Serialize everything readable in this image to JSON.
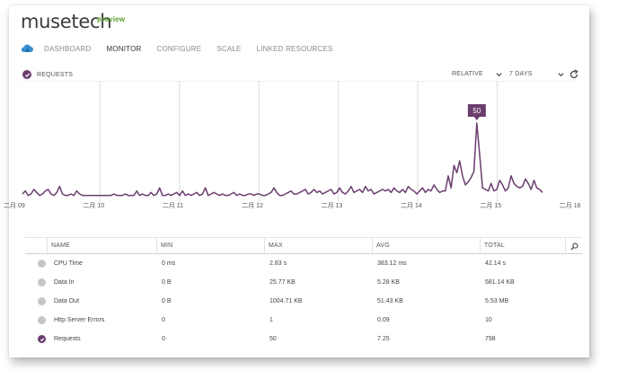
{
  "app": {
    "title": "musetech",
    "preview_tag": "preview"
  },
  "nav": {
    "icon": "cloud-icon",
    "tabs": [
      {
        "label": "DASHBOARD",
        "active": false
      },
      {
        "label": "MONITOR",
        "active": true
      },
      {
        "label": "CONFIGURE",
        "active": false
      },
      {
        "label": "SCALE",
        "active": false
      },
      {
        "label": "LINKED RESOURCES",
        "active": false
      }
    ]
  },
  "metric_header": {
    "label": "REQUESTS",
    "checked": true
  },
  "controls": {
    "mode": "RELATIVE",
    "range": "7 DAYS"
  },
  "colors": {
    "accent": "#6a3d6e",
    "grid": "#dcdcdc",
    "inactive_dot": "#c6c6c6",
    "preview": "#5aa02c"
  },
  "chart_data": {
    "type": "line",
    "series": [
      {
        "name": "Requests",
        "values": [
          3,
          5,
          2,
          3,
          6,
          4,
          2,
          3,
          5,
          6,
          3,
          2,
          4,
          8,
          3,
          2,
          2,
          3,
          2,
          5,
          3,
          2,
          2,
          2,
          2,
          2,
          2,
          2,
          2,
          2,
          2,
          2,
          3,
          2,
          2,
          2,
          3,
          2,
          2,
          2,
          5,
          2,
          3,
          2,
          2,
          4,
          2,
          3,
          7,
          2,
          2,
          3,
          2,
          3,
          4,
          2,
          5,
          2,
          3,
          2,
          3,
          4,
          2,
          3,
          7,
          2,
          3,
          4,
          3,
          2,
          3,
          2,
          2,
          3,
          4,
          2,
          3,
          2,
          2,
          3,
          3,
          2,
          3,
          3,
          2,
          2,
          3,
          4,
          7,
          4,
          2,
          2,
          3,
          4,
          5,
          3,
          3,
          4,
          5,
          6,
          3,
          4,
          6,
          4,
          5,
          3,
          4,
          5,
          6,
          3,
          4,
          7,
          4,
          3,
          5,
          8,
          4,
          5,
          6,
          4,
          8,
          5,
          6,
          3,
          4,
          5,
          6,
          5,
          6,
          4,
          7,
          5,
          4,
          6,
          4,
          8,
          6,
          5,
          3,
          5,
          7,
          4,
          6,
          5,
          9,
          6,
          4,
          5,
          5,
          15,
          7,
          22,
          17,
          25,
          15,
          9,
          11,
          14,
          18,
          50,
          29,
          7,
          6,
          5,
          10,
          5,
          6,
          12,
          9,
          5,
          7,
          15,
          10,
          8,
          7,
          8,
          13,
          10,
          6,
          12,
          7,
          6,
          4
        ]
      }
    ],
    "x_tick_labels": [
      "二月 09",
      "二月 10",
      "二月 11",
      "二月 12",
      "二月 13",
      "二月 14",
      "二月 15",
      "二月 16"
    ],
    "y_range": [
      0,
      78
    ],
    "peak_label": "50",
    "grid": "vertical"
  },
  "table": {
    "columns": [
      "NAME",
      "MIN",
      "MAX",
      "AVG",
      "TOTAL"
    ],
    "rows": [
      {
        "name": "CPU Time",
        "min": "0 ms",
        "max": "2.83 s",
        "avg": "383.12 ms",
        "total": "42.14 s",
        "checked": false
      },
      {
        "name": "Data In",
        "min": "0 B",
        "max": "25.77 KB",
        "avg": "5.28 KB",
        "total": "581.14 KB",
        "checked": false
      },
      {
        "name": "Data Out",
        "min": "0 B",
        "max": "1004.71 KB",
        "avg": "51.43 KB",
        "total": "5.53 MB",
        "checked": false
      },
      {
        "name": "Http Server Errors",
        "min": "0",
        "max": "1",
        "avg": "0.09",
        "total": "10",
        "checked": false
      },
      {
        "name": "Requests",
        "min": "0",
        "max": "50",
        "avg": "7.25",
        "total": "798",
        "checked": true
      }
    ]
  }
}
